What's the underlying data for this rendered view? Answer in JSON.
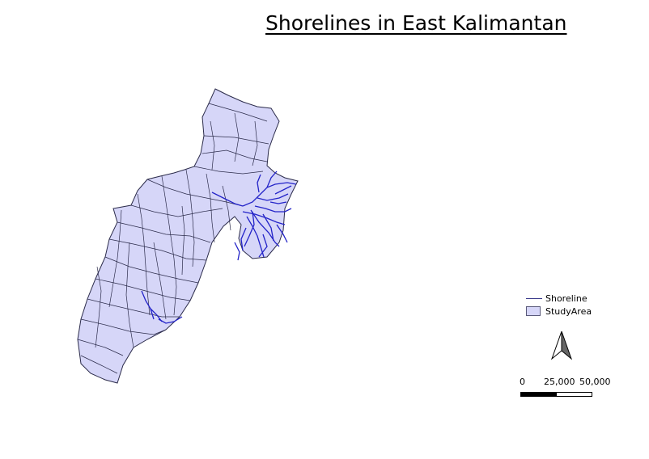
{
  "map": {
    "title": "Shorelines in East Kalimantan"
  },
  "legend": {
    "items": [
      {
        "label": "Shoreline",
        "symbol": "line",
        "color": "#3a3a8a"
      },
      {
        "label": "StudyArea",
        "symbol": "fill",
        "color": "#d6d6f8"
      }
    ]
  },
  "scalebar": {
    "labels": [
      "0",
      "25,000",
      "50,000"
    ]
  },
  "colors": {
    "land_fill": "#d6d6f8",
    "boundary": "#2b2b4a",
    "shoreline": "#2323c8"
  }
}
